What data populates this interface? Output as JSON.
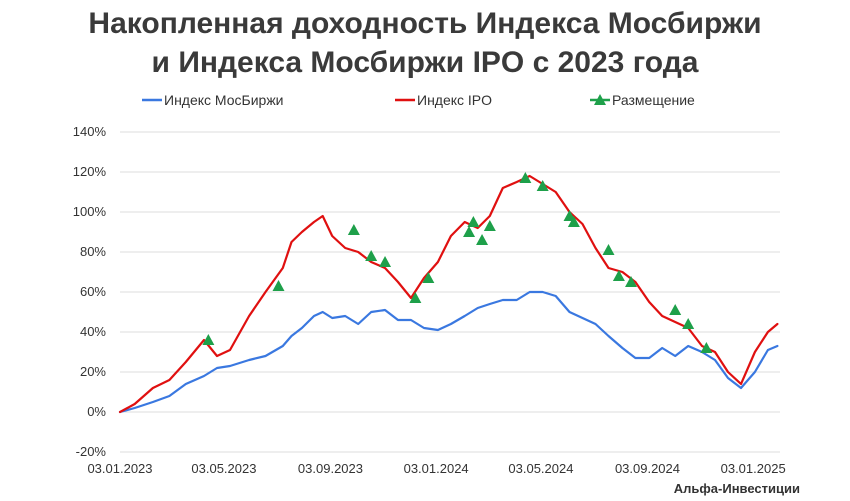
{
  "title_line1": "Накопленная доходность Индекса Мосбиржи",
  "title_line2": "и Индекса Мосбиржи IPO с 2023 года",
  "credit": "Альфа-Инвестиции",
  "colors": {
    "moex": "#3a78e0",
    "ipo": "#e01010",
    "placement": "#1ea04a",
    "grid": "#dddddd",
    "text": "#333333"
  },
  "chart_data": {
    "type": "line",
    "x_dates": [
      "2023-01-03",
      "2023-01-20",
      "2023-02-10",
      "2023-03-01",
      "2023-03-20",
      "2023-04-10",
      "2023-04-25",
      "2023-05-10",
      "2023-06-01",
      "2023-06-20",
      "2023-07-10",
      "2023-07-20",
      "2023-08-01",
      "2023-08-15",
      "2023-08-25",
      "2023-09-05",
      "2023-09-20",
      "2023-10-05",
      "2023-10-20",
      "2023-11-05",
      "2023-11-20",
      "2023-12-05",
      "2023-12-20",
      "2024-01-05",
      "2024-01-20",
      "2024-02-05",
      "2024-02-20",
      "2024-03-05",
      "2024-03-20",
      "2024-04-05",
      "2024-04-20",
      "2024-05-05",
      "2024-05-20",
      "2024-06-05",
      "2024-06-20",
      "2024-07-05",
      "2024-07-20",
      "2024-08-05",
      "2024-08-20",
      "2024-09-05",
      "2024-09-20",
      "2024-10-05",
      "2024-10-20",
      "2024-11-05",
      "2024-11-20",
      "2024-12-05",
      "2024-12-20",
      "2025-01-05",
      "2025-01-20",
      "2025-01-31"
    ],
    "series": [
      {
        "name": "Индекс МосБиржи",
        "values": [
          0,
          2,
          5,
          8,
          14,
          18,
          22,
          23,
          26,
          28,
          33,
          38,
          42,
          48,
          50,
          47,
          48,
          44,
          50,
          51,
          46,
          46,
          42,
          41,
          44,
          48,
          52,
          54,
          56,
          56,
          60,
          60,
          58,
          50,
          47,
          44,
          38,
          32,
          27,
          27,
          32,
          28,
          33,
          30,
          26,
          17,
          12,
          20,
          31,
          33
        ]
      },
      {
        "name": "Индекс IPO",
        "values": [
          0,
          4,
          12,
          16,
          25,
          36,
          28,
          31,
          48,
          60,
          72,
          85,
          90,
          95,
          98,
          88,
          82,
          80,
          75,
          72,
          65,
          57,
          67,
          75,
          88,
          95,
          92,
          98,
          112,
          115,
          118,
          114,
          110,
          100,
          94,
          82,
          72,
          70,
          65,
          55,
          48,
          45,
          42,
          33,
          30,
          20,
          14,
          30,
          40,
          44
        ]
      }
    ],
    "placements": {
      "name": "Размещение",
      "points": [
        {
          "x": "2023-04-15",
          "y": 36
        },
        {
          "x": "2023-07-05",
          "y": 63
        },
        {
          "x": "2023-09-30",
          "y": 91
        },
        {
          "x": "2023-10-20",
          "y": 78
        },
        {
          "x": "2023-11-05",
          "y": 75
        },
        {
          "x": "2023-12-10",
          "y": 57
        },
        {
          "x": "2023-12-25",
          "y": 67
        },
        {
          "x": "2024-02-10",
          "y": 90
        },
        {
          "x": "2024-02-15",
          "y": 95
        },
        {
          "x": "2024-02-25",
          "y": 86
        },
        {
          "x": "2024-03-05",
          "y": 93
        },
        {
          "x": "2024-04-15",
          "y": 117
        },
        {
          "x": "2024-05-05",
          "y": 113
        },
        {
          "x": "2024-06-05",
          "y": 98
        },
        {
          "x": "2024-06-10",
          "y": 95
        },
        {
          "x": "2024-07-20",
          "y": 81
        },
        {
          "x": "2024-08-01",
          "y": 68
        },
        {
          "x": "2024-08-15",
          "y": 65
        },
        {
          "x": "2024-10-05",
          "y": 51
        },
        {
          "x": "2024-10-20",
          "y": 44
        },
        {
          "x": "2024-11-10",
          "y": 32
        }
      ]
    },
    "x_ticks": [
      "03.01.2023",
      "03.05.2023",
      "03.09.2023",
      "03.01.2024",
      "03.05.2024",
      "03.09.2024",
      "03.01.2025"
    ],
    "x_tick_dates": [
      "2023-01-03",
      "2023-05-03",
      "2023-09-03",
      "2024-01-03",
      "2024-05-03",
      "2024-09-03",
      "2025-01-03"
    ],
    "y_ticks": [
      "140%",
      "120%",
      "100%",
      "80%",
      "60%",
      "40%",
      "20%",
      "0%",
      "-20%"
    ],
    "y_tick_values": [
      140,
      120,
      100,
      80,
      60,
      40,
      20,
      0,
      -20
    ],
    "ylim": [
      -20,
      140
    ],
    "xlim": [
      "2023-01-03",
      "2025-02-03"
    ],
    "legend": [
      "Индекс МосБиржи",
      "Индекс IPO",
      "Размещение"
    ],
    "legend_position": "top",
    "grid": "horizontal"
  }
}
